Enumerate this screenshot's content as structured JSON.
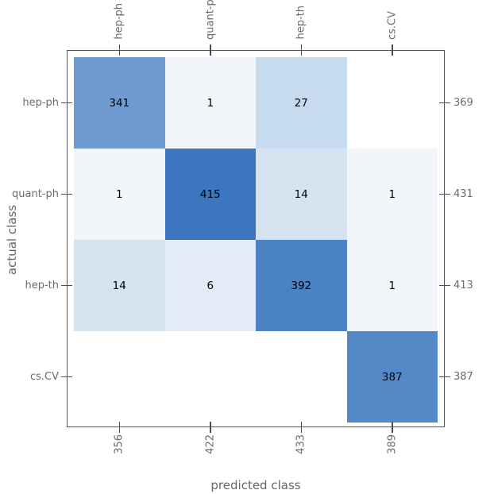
{
  "chart_data": {
    "type": "heatmap",
    "title": "",
    "xlabel": "predicted class",
    "ylabel": "actual class",
    "x_categories": [
      "hep-ph",
      "quant-ph",
      "hep-th",
      "cs.CV"
    ],
    "y_categories": [
      "hep-ph",
      "quant-ph",
      "hep-th",
      "cs.CV"
    ],
    "matrix": [
      [
        341,
        1,
        27,
        null
      ],
      [
        1,
        415,
        14,
        1
      ],
      [
        14,
        6,
        392,
        1
      ],
      [
        null,
        null,
        null,
        387
      ]
    ],
    "row_totals": [
      369,
      431,
      413,
      387
    ],
    "col_totals": [
      356,
      422,
      433,
      389
    ],
    "cell_colors": [
      [
        "#6f9bd0",
        "#f2f6fb",
        "#c7dbee",
        "#ffffff"
      ],
      [
        "#f2f6fb",
        "#3b76be",
        "#d5e3f0",
        "#f2f6fb"
      ],
      [
        "#d5e3f0",
        "#e3ecf6",
        "#4a82c4",
        "#f2f6fb"
      ],
      [
        "#ffffff",
        "#ffffff",
        "#ffffff",
        "#5389c6"
      ]
    ],
    "style": {
      "background": "#ffffff",
      "frame_color": "#545454",
      "tick_color": "#4c4c4c",
      "tick_label_color": "#6b6b6b",
      "axis_title_color": "#666666",
      "cell_text_color": "#000000",
      "grid_visible": false,
      "legend": "none"
    }
  }
}
